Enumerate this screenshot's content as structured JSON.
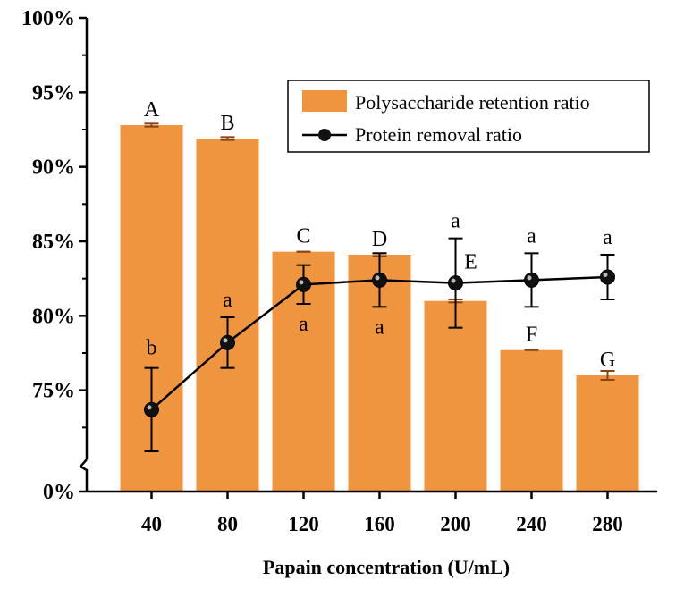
{
  "chart_data": {
    "type": "bar",
    "title": "",
    "xlabel": "Papain concentration (U/mL)",
    "ylabel": "",
    "categories": [
      "40",
      "80",
      "120",
      "160",
      "200",
      "240",
      "280"
    ],
    "y_ticks": [
      "100%",
      "95%",
      "90%",
      "85%",
      "80%",
      "75%",
      "0%"
    ],
    "ylim": [
      70,
      100
    ],
    "axis_break": true,
    "legend_position": "top-right",
    "colors": {
      "bar": "#F0953F",
      "bar_edge": "#D07A2A",
      "line": "#000000",
      "error_bar": "#000000",
      "bar_error": "#8B4513"
    },
    "series": [
      {
        "name": "Polysaccharide retention ratio",
        "kind": "bar",
        "values": [
          92.8,
          91.9,
          84.3,
          84.1,
          81.0,
          77.7,
          76.0
        ],
        "errors": [
          0.1,
          0.1,
          0.0,
          0.1,
          0.1,
          0.0,
          0.3
        ],
        "letters": [
          "A",
          "B",
          "C",
          "D",
          "E",
          "F",
          "G"
        ]
      },
      {
        "name": "Protein removal ratio",
        "kind": "line",
        "values": [
          73.7,
          78.2,
          82.1,
          82.4,
          82.2,
          82.4,
          82.6
        ],
        "errors": [
          2.8,
          1.7,
          1.3,
          1.8,
          3.0,
          1.8,
          1.5
        ],
        "letters": [
          "b",
          "a",
          "a",
          "a",
          "a",
          "a",
          "a"
        ]
      }
    ]
  }
}
